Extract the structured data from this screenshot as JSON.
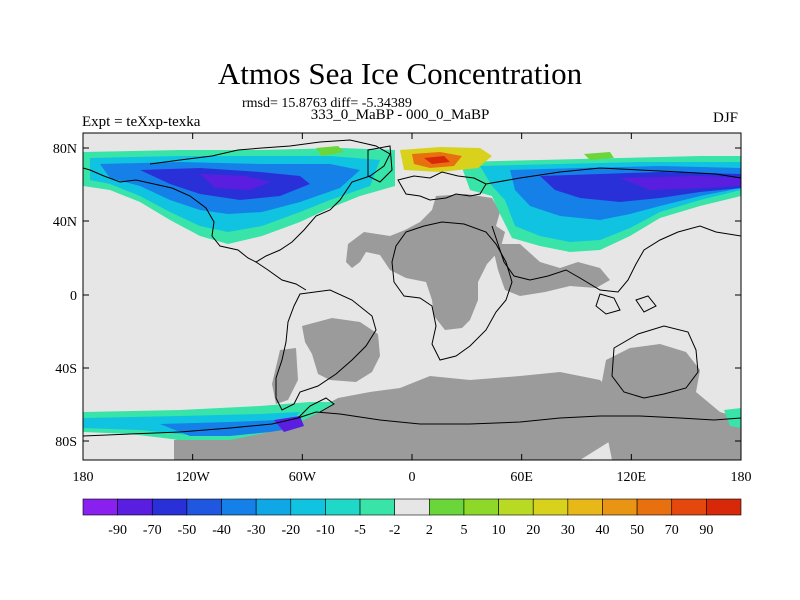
{
  "title": "Atmos Sea Ice Concentration",
  "stats": "rmsd= 15.8763 diff= -5.34389",
  "experiments": "333_0_MaBP - 000_0_MaBP",
  "expt_label": "Expt = teXxp-texka",
  "season": "DJF",
  "axes": {
    "lat_ticks": [
      "80N",
      "40N",
      "0",
      "40S",
      "80S"
    ],
    "lon_ticks": [
      "180",
      "120W",
      "60W",
      "0",
      "60E",
      "120E",
      "180"
    ]
  },
  "colorbar": {
    "labels": [
      "-90",
      "-70",
      "-50",
      "-40",
      "-30",
      "-20",
      "-10",
      "-5",
      "-2",
      "2",
      "5",
      "10",
      "20",
      "30",
      "40",
      "50",
      "70",
      "90"
    ],
    "colors": [
      "#8a20f0",
      "#5a1ee0",
      "#2a30d8",
      "#1f57e0",
      "#1580e8",
      "#0fa7e6",
      "#10c3e0",
      "#1fd8c8",
      "#38e4a8",
      "#e6e6e6",
      "#6ad63a",
      "#8ed82a",
      "#b8da22",
      "#d8d21c",
      "#e8b818",
      "#ea9414",
      "#e8700f",
      "#e4480c",
      "#d8280a"
    ]
  },
  "map": {
    "land_color": "#9b9b9b",
    "background_color": "#e6e6e6"
  }
}
